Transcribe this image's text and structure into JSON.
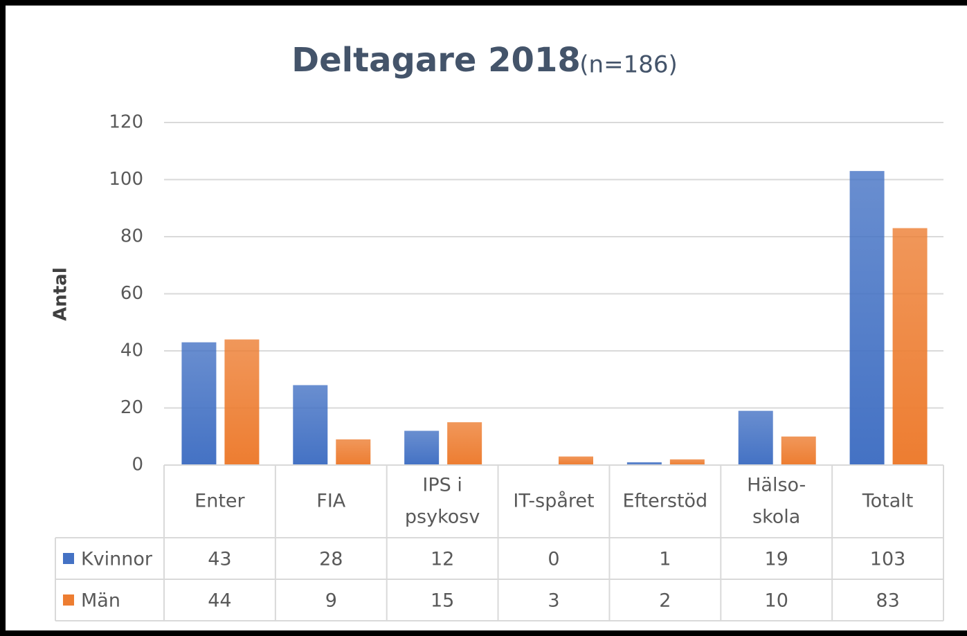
{
  "chart_data": {
    "type": "bar",
    "title": "Deltagare 2018",
    "subtitle": "(n=186)",
    "y_label": "Antal",
    "categories": [
      "Enter",
      "FIA",
      "IPS i\npsykosv",
      "IT-spåret",
      "Efterstöd",
      "Hälso-\nskola",
      "Totalt"
    ],
    "series": [
      {
        "name": "Kvinnor",
        "color": "#4472c4",
        "values": [
          43,
          28,
          12,
          0,
          1,
          19,
          103
        ]
      },
      {
        "name": "Män",
        "color": "#ed7d31",
        "values": [
          44,
          9,
          15,
          3,
          2,
          10,
          83
        ]
      }
    ],
    "ylim": [
      0,
      120
    ],
    "yticks": [
      0,
      20,
      40,
      60,
      80,
      100,
      120
    ],
    "grid": true,
    "data_table": true
  }
}
